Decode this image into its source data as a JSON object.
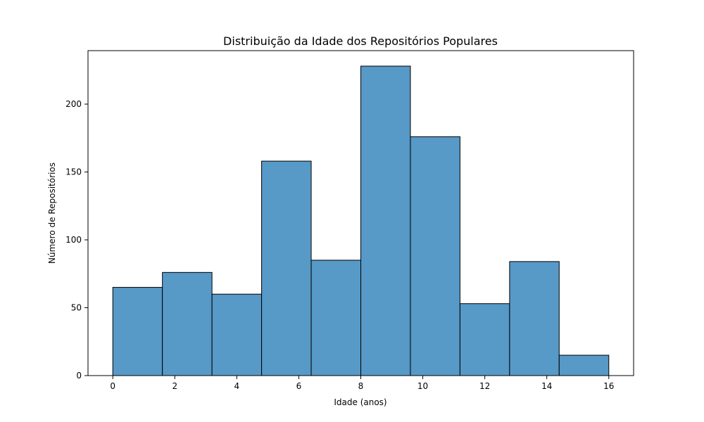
{
  "chart_data": {
    "type": "bar",
    "title": "Distribuição da Idade dos Repositórios Populares",
    "xlabel": "Idade (anos)",
    "ylabel": "Número de Repositórios",
    "bin_edges": [
      0,
      1.6,
      3.2,
      4.8,
      6.4,
      8.0,
      9.6,
      11.2,
      12.8,
      14.4,
      16.0
    ],
    "values": [
      65,
      76,
      60,
      158,
      85,
      228,
      176,
      53,
      84,
      15
    ],
    "xlim": [
      -0.8,
      16.8
    ],
    "ylim": [
      0,
      239.4
    ],
    "x_ticks": [
      0,
      2,
      4,
      6,
      8,
      10,
      12,
      14,
      16
    ],
    "y_ticks": [
      0,
      50,
      100,
      150,
      200
    ],
    "bar_color": "#5799c7",
    "edge_color": "#000000",
    "grid": false
  }
}
